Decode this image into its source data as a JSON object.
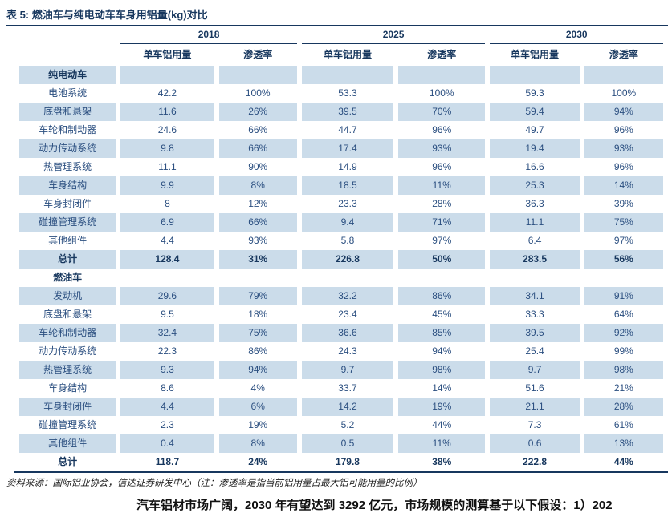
{
  "page": {
    "title": "表 5: 燃油车与纯电动车车身用铝量(kg)对比",
    "source_note": "资料来源：国际铝业协会，信达证券研发中心（注：渗透率是指当前铝用量占最大铝可能用量的比例）",
    "body_text": "汽车铝材市场广阔，2030 年有望达到 3292 亿元，市场规模的测算基于以下假设：1）202"
  },
  "colors": {
    "accent_navy": "#17375E",
    "body_navy": "#2B4F80",
    "stripe_blue": "#CBDCEA"
  },
  "table": {
    "year_groups": [
      "2018",
      "2025",
      "2030"
    ],
    "col_headers": [
      "单车铝用量",
      "渗透率"
    ],
    "sections": [
      {
        "name": "纯电动车",
        "rows": [
          {
            "label": "电池系统",
            "values": [
              "42.2",
              "100%",
              "53.3",
              "100%",
              "59.3",
              "100%"
            ]
          },
          {
            "label": "底盘和悬架",
            "values": [
              "11.6",
              "26%",
              "39.5",
              "70%",
              "59.4",
              "94%"
            ]
          },
          {
            "label": "车轮和制动器",
            "values": [
              "24.6",
              "66%",
              "44.7",
              "96%",
              "49.7",
              "96%"
            ]
          },
          {
            "label": "动力传动系统",
            "values": [
              "9.8",
              "66%",
              "17.4",
              "93%",
              "19.4",
              "93%"
            ]
          },
          {
            "label": "热管理系统",
            "values": [
              "11.1",
              "90%",
              "14.9",
              "96%",
              "16.6",
              "96%"
            ]
          },
          {
            "label": "车身结构",
            "values": [
              "9.9",
              "8%",
              "18.5",
              "11%",
              "25.3",
              "14%"
            ]
          },
          {
            "label": "车身封闭件",
            "values": [
              "8",
              "12%",
              "23.3",
              "28%",
              "36.3",
              "39%"
            ]
          },
          {
            "label": "碰撞管理系统",
            "values": [
              "6.9",
              "66%",
              "9.4",
              "71%",
              "11.1",
              "75%"
            ]
          },
          {
            "label": "其他组件",
            "values": [
              "4.4",
              "93%",
              "5.8",
              "97%",
              "6.4",
              "97%"
            ]
          }
        ],
        "total": {
          "label": "总计",
          "values": [
            "128.4",
            "31%",
            "226.8",
            "50%",
            "283.5",
            "56%"
          ]
        }
      },
      {
        "name": "燃油车",
        "rows": [
          {
            "label": "发动机",
            "values": [
              "29.6",
              "79%",
              "32.2",
              "86%",
              "34.1",
              "91%"
            ]
          },
          {
            "label": "底盘和悬架",
            "values": [
              "9.5",
              "18%",
              "23.4",
              "45%",
              "33.3",
              "64%"
            ]
          },
          {
            "label": "车轮和制动器",
            "values": [
              "32.4",
              "75%",
              "36.6",
              "85%",
              "39.5",
              "92%"
            ]
          },
          {
            "label": "动力传动系统",
            "values": [
              "22.3",
              "86%",
              "24.3",
              "94%",
              "25.4",
              "99%"
            ]
          },
          {
            "label": "热管理系统",
            "values": [
              "9.3",
              "94%",
              "9.7",
              "98%",
              "9.7",
              "98%"
            ]
          },
          {
            "label": "车身结构",
            "values": [
              "8.6",
              "4%",
              "33.7",
              "14%",
              "51.6",
              "21%"
            ]
          },
          {
            "label": "车身封闭件",
            "values": [
              "4.4",
              "6%",
              "14.2",
              "19%",
              "21.1",
              "28%"
            ]
          },
          {
            "label": "碰撞管理系统",
            "values": [
              "2.3",
              "19%",
              "5.2",
              "44%",
              "7.3",
              "61%"
            ]
          },
          {
            "label": "其他组件",
            "values": [
              "0.4",
              "8%",
              "0.5",
              "11%",
              "0.6",
              "13%"
            ]
          }
        ],
        "total": {
          "label": "总计",
          "values": [
            "118.7",
            "24%",
            "179.8",
            "38%",
            "222.8",
            "44%"
          ]
        }
      }
    ]
  }
}
